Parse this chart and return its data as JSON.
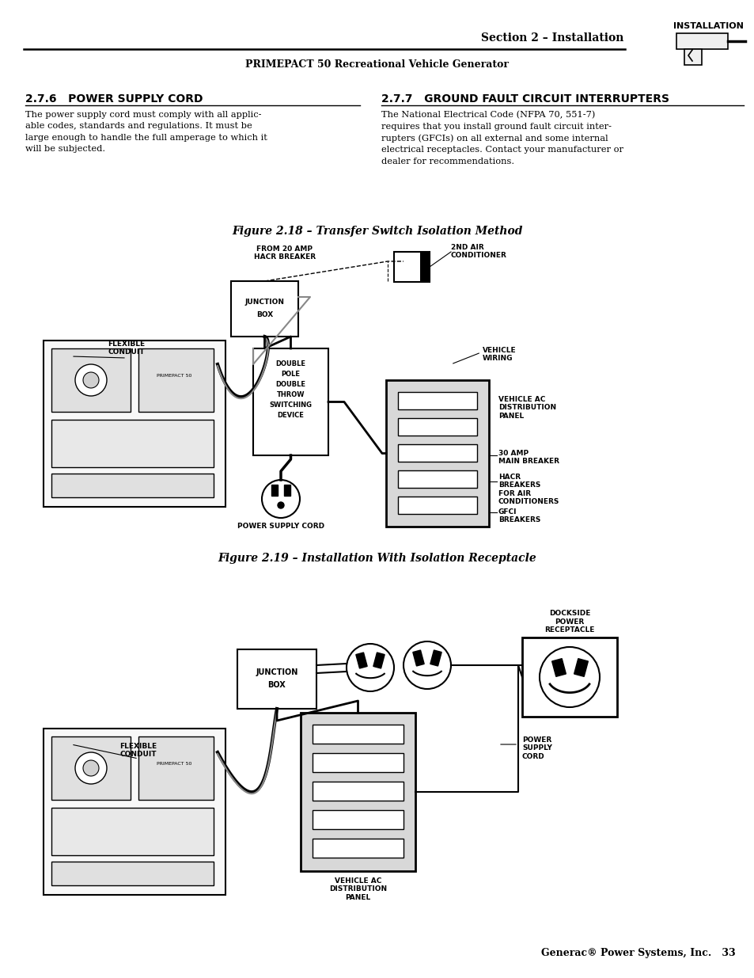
{
  "page_bg": "#ffffff",
  "header_section_text": "Section 2 – Installation",
  "header_subtitle": "PRIMEPACT 50 Recreational Vehicle Generator",
  "header_install_label": "INSTALLATION",
  "footer_text": "Generac® Power Systems, Inc.   33",
  "section_276_title": "2.7.6   POWER SUPPLY CORD",
  "section_276_body": "The power supply cord must comply with all applic-\nable codes, standards and regulations. It must be\nlarge enough to handle the full amperage to which it\nwill be subjected.",
  "section_277_title": "2.7.7   GROUND FAULT CIRCUIT INTERRUPTERS",
  "section_277_body": "The National Electrical Code (NFPA 70, 551-7)\nrequires that you install ground fault circuit inter-\nrupters (GFCIs) on all external and some internal\nelectrical receptacles. Contact your manufacturer or\ndealer for recommendations.",
  "fig18_title": "Figure 2.18 – Transfer Switch Isolation Method",
  "fig19_title": "Figure 2.19 – Installation With Isolation Receptacle"
}
